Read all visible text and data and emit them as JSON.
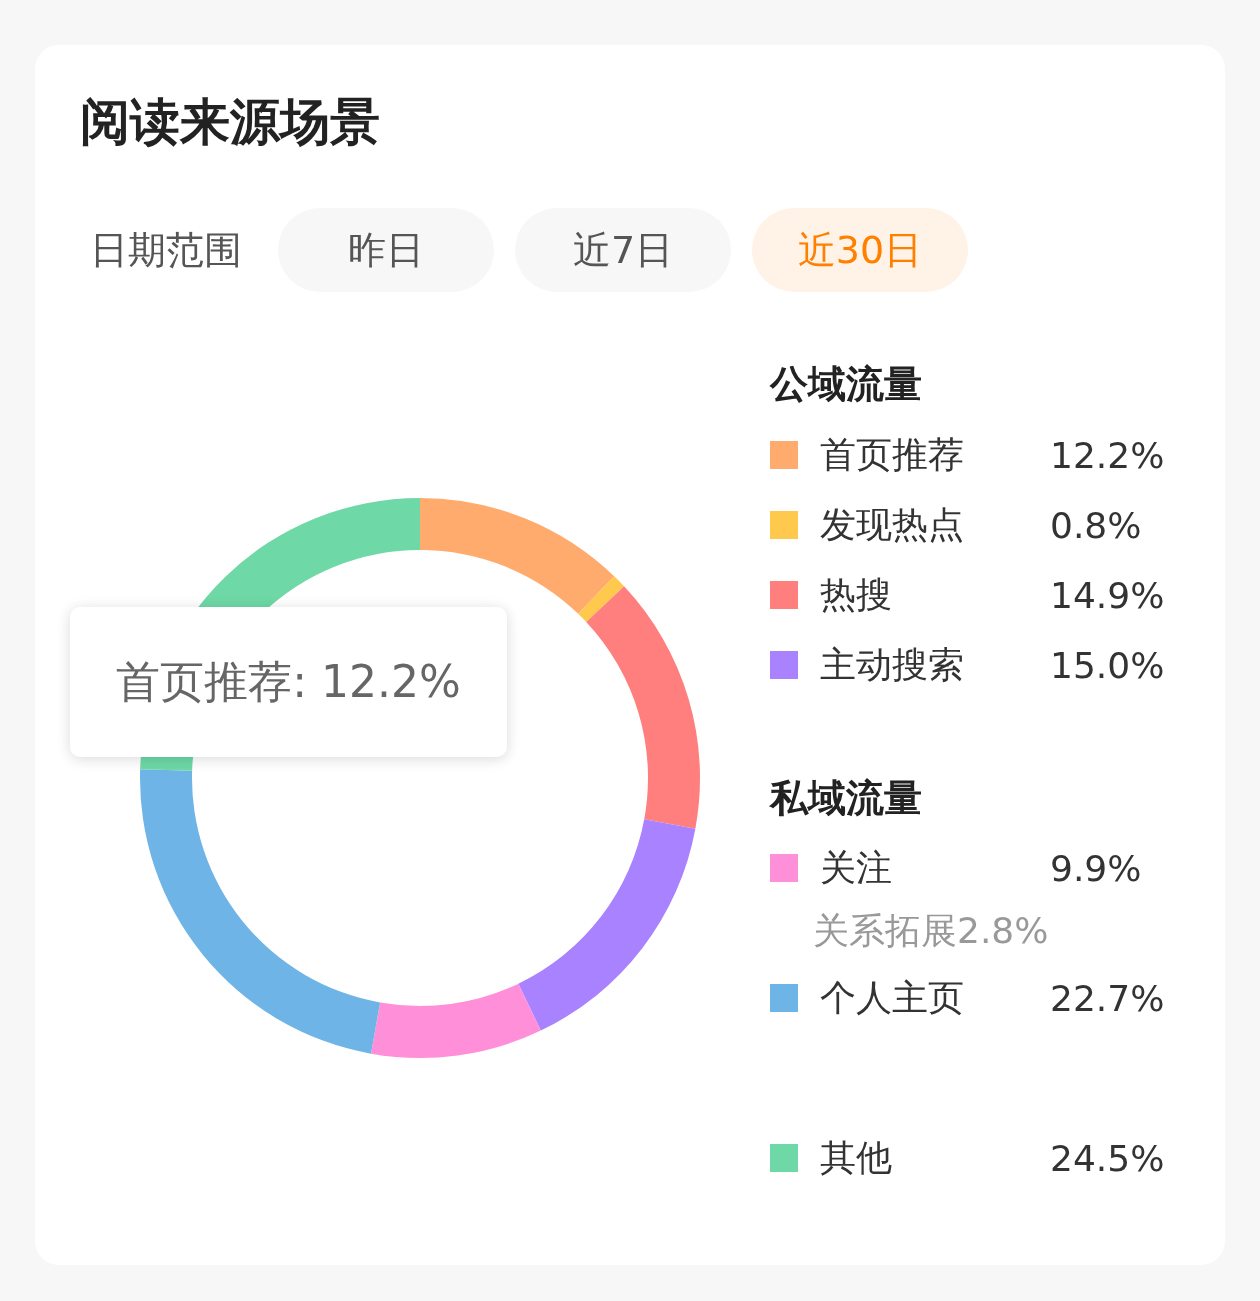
{
  "chart_data": {
    "type": "donut",
    "title": "阅读来源场景",
    "categories": [
      "首页推荐",
      "发现热点",
      "热搜",
      "主动搜索",
      "关注",
      "个人主页",
      "其他"
    ],
    "values": [
      12.2,
      0.8,
      14.9,
      15.0,
      9.9,
      22.7,
      24.5
    ],
    "colors": [
      "#ffab6e",
      "#ffc94d",
      "#ff7f7f",
      "#a882ff",
      "#ff8fd9",
      "#6eb4e6",
      "#6ed8a6"
    ],
    "value_labels": [
      "12.2%",
      "0.8%",
      "14.9%",
      "15.0%",
      "9.9%",
      "22.7%",
      "24.5%"
    ],
    "legend": "right",
    "annotations": [
      "日期范围",
      "昨日",
      "近7日",
      "近30日",
      "公域流量",
      "私域流量",
      "关系拓展2.8%",
      "首页推荐: 12.2%"
    ]
  }
}
